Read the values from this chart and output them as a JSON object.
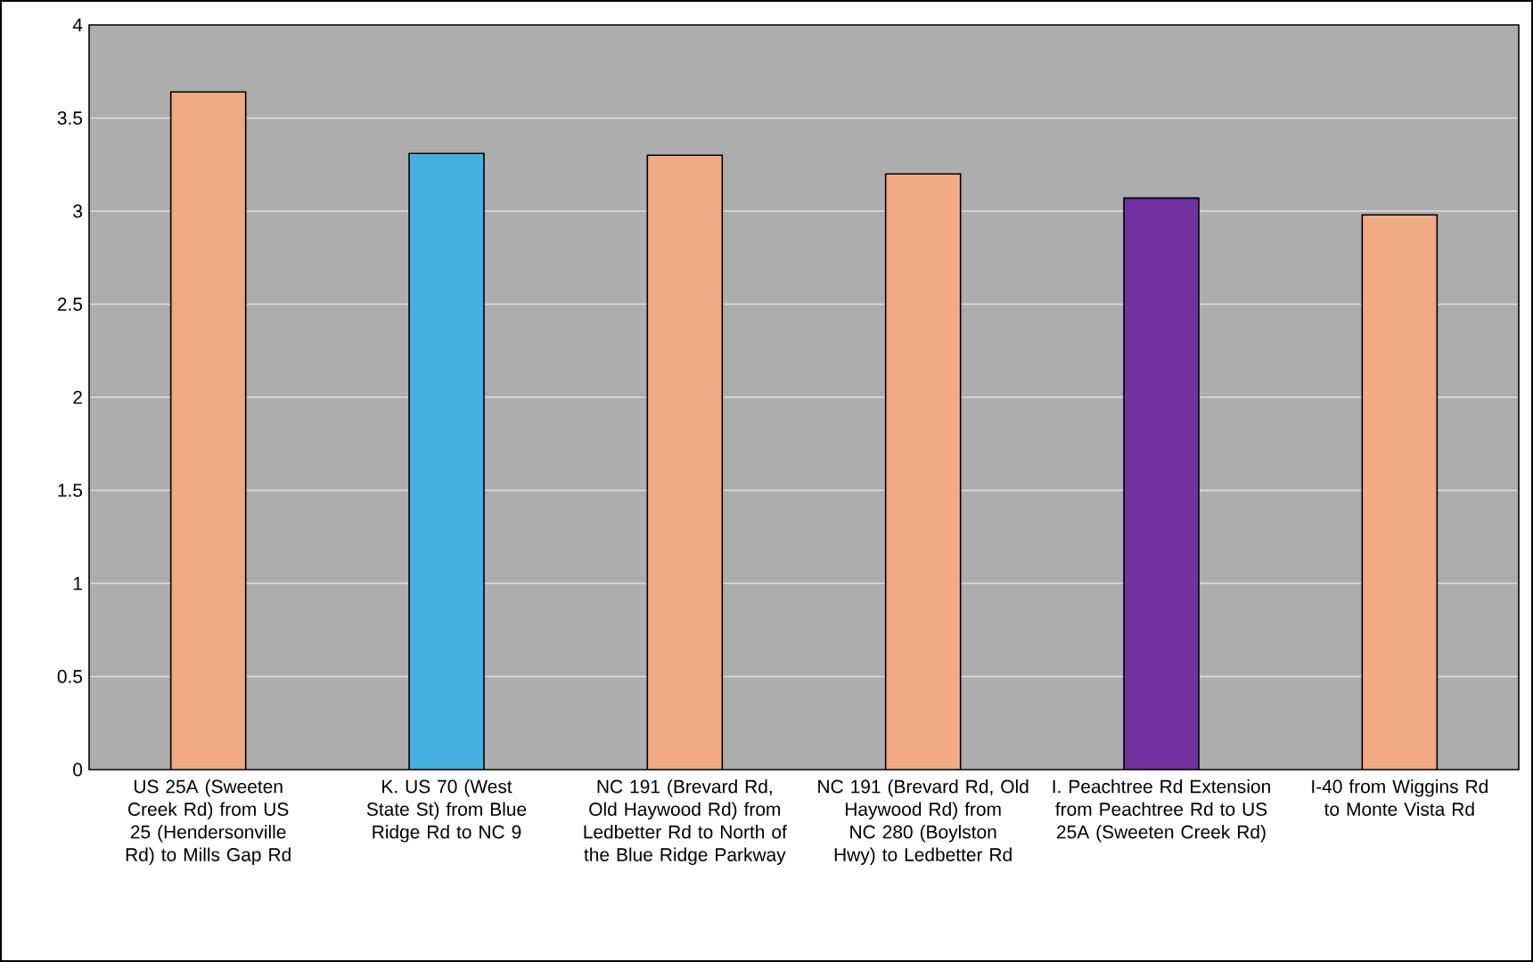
{
  "chart_data": {
    "type": "bar",
    "categories": [
      "US 25A (Sweeten Creek Rd) from US 25 (Hendersonville Rd) to Mills Gap Rd",
      "K. US 70 (West State St) from Blue Ridge Rd to NC 9",
      "NC 191 (Brevard Rd, Old Haywood Rd) from Ledbetter Rd to North of the Blue Ridge Parkway",
      "NC 191 (Brevard Rd, Old Haywood Rd) from NC 280 (Boylston Hwy) to Ledbetter Rd",
      "I. Peachtree Rd Extension from Peachtree Rd to US 25A (Sweeten Creek Rd)",
      "I-40 from Wiggins Rd to Monte Vista Rd"
    ],
    "values": [
      3.64,
      3.31,
      3.3,
      3.2,
      3.07,
      2.98
    ],
    "colors": [
      "#f2aa84",
      "#45b0e1",
      "#f2aa84",
      "#f2aa84",
      "#7030a0",
      "#f2aa84"
    ],
    "ylim": [
      0,
      4
    ],
    "yticks": [
      0,
      0.5,
      1,
      1.5,
      2,
      2.5,
      3,
      3.5,
      4
    ],
    "grid": "y"
  }
}
